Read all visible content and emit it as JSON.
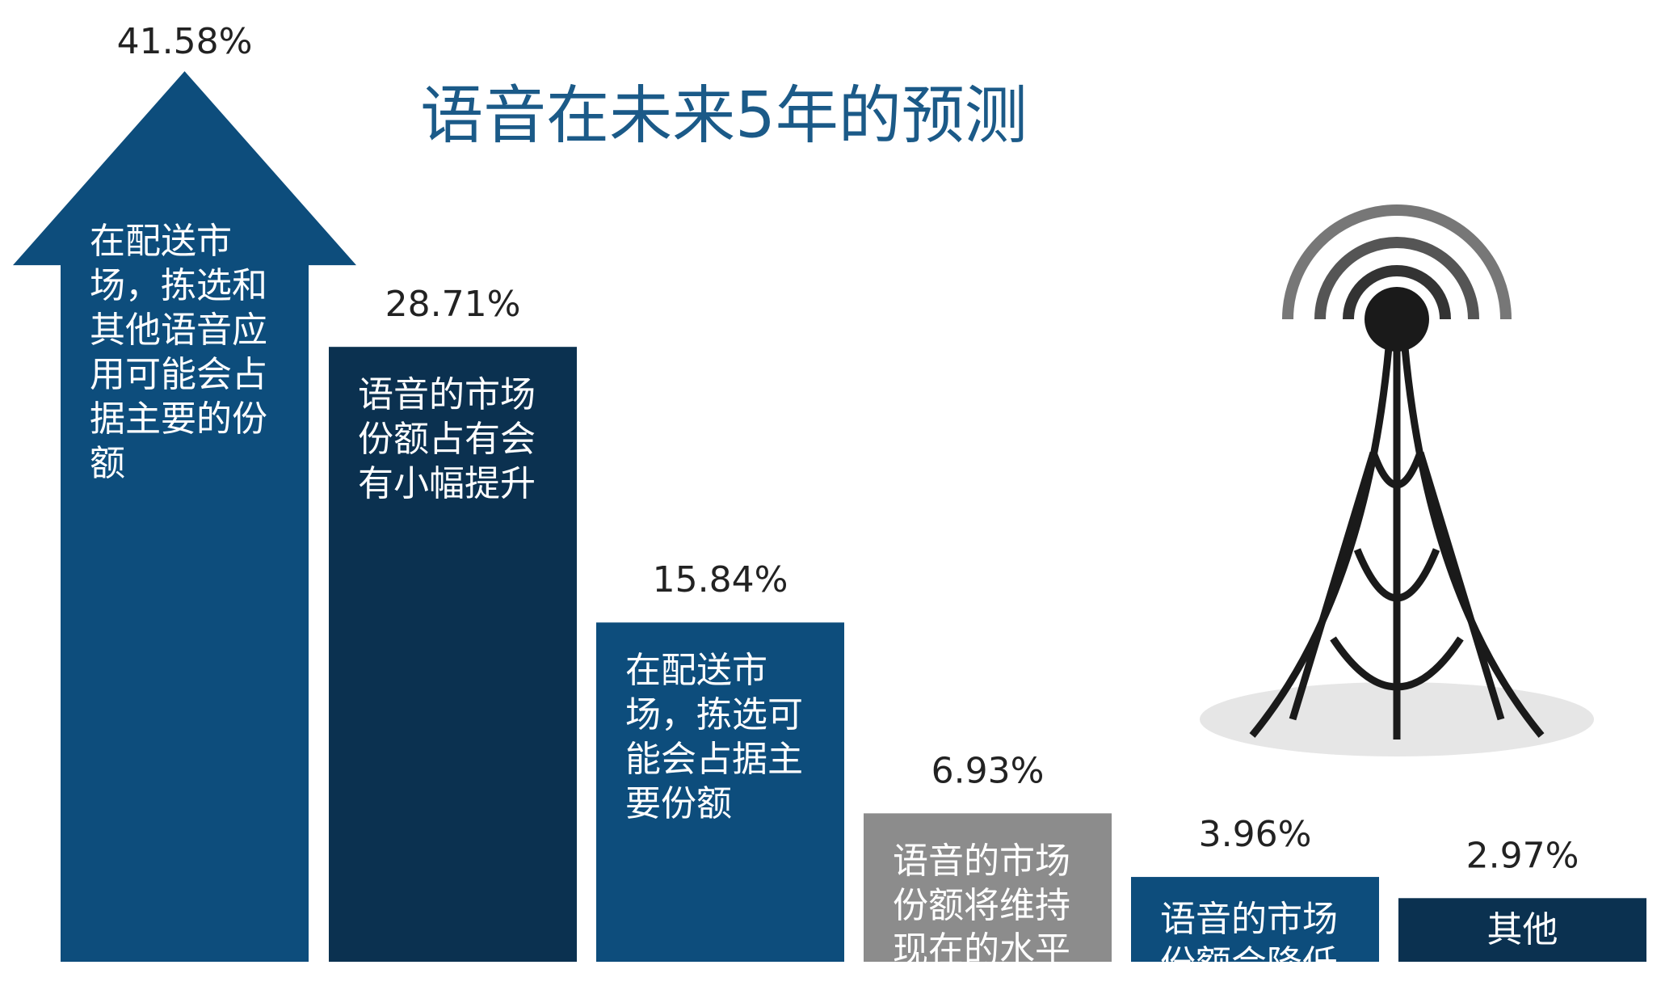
{
  "chart_data": {
    "type": "bar",
    "title": "语音在未来5年的预测",
    "categories": [
      "在配送市场，拣选和其他语音应用可能会占据主要的份额",
      "语音的市场份额占有会有小幅提升",
      "在配送市场，拣选可能会占据主要份额",
      "语音的市场份额将维持现在的水平",
      "语音的市场份额会降低",
      "其他"
    ],
    "values": [
      41.58,
      28.71,
      15.84,
      6.93,
      3.96,
      2.97
    ],
    "value_labels": [
      "41.58%",
      "28.71%",
      "15.84%",
      "6.93%",
      "3.96%",
      "2.97%"
    ],
    "colors": [
      "#0d4d7c",
      "#0b3150",
      "#0d4d7c",
      "#8c8c8c",
      "#0d4d7c",
      "#0b3150"
    ]
  }
}
